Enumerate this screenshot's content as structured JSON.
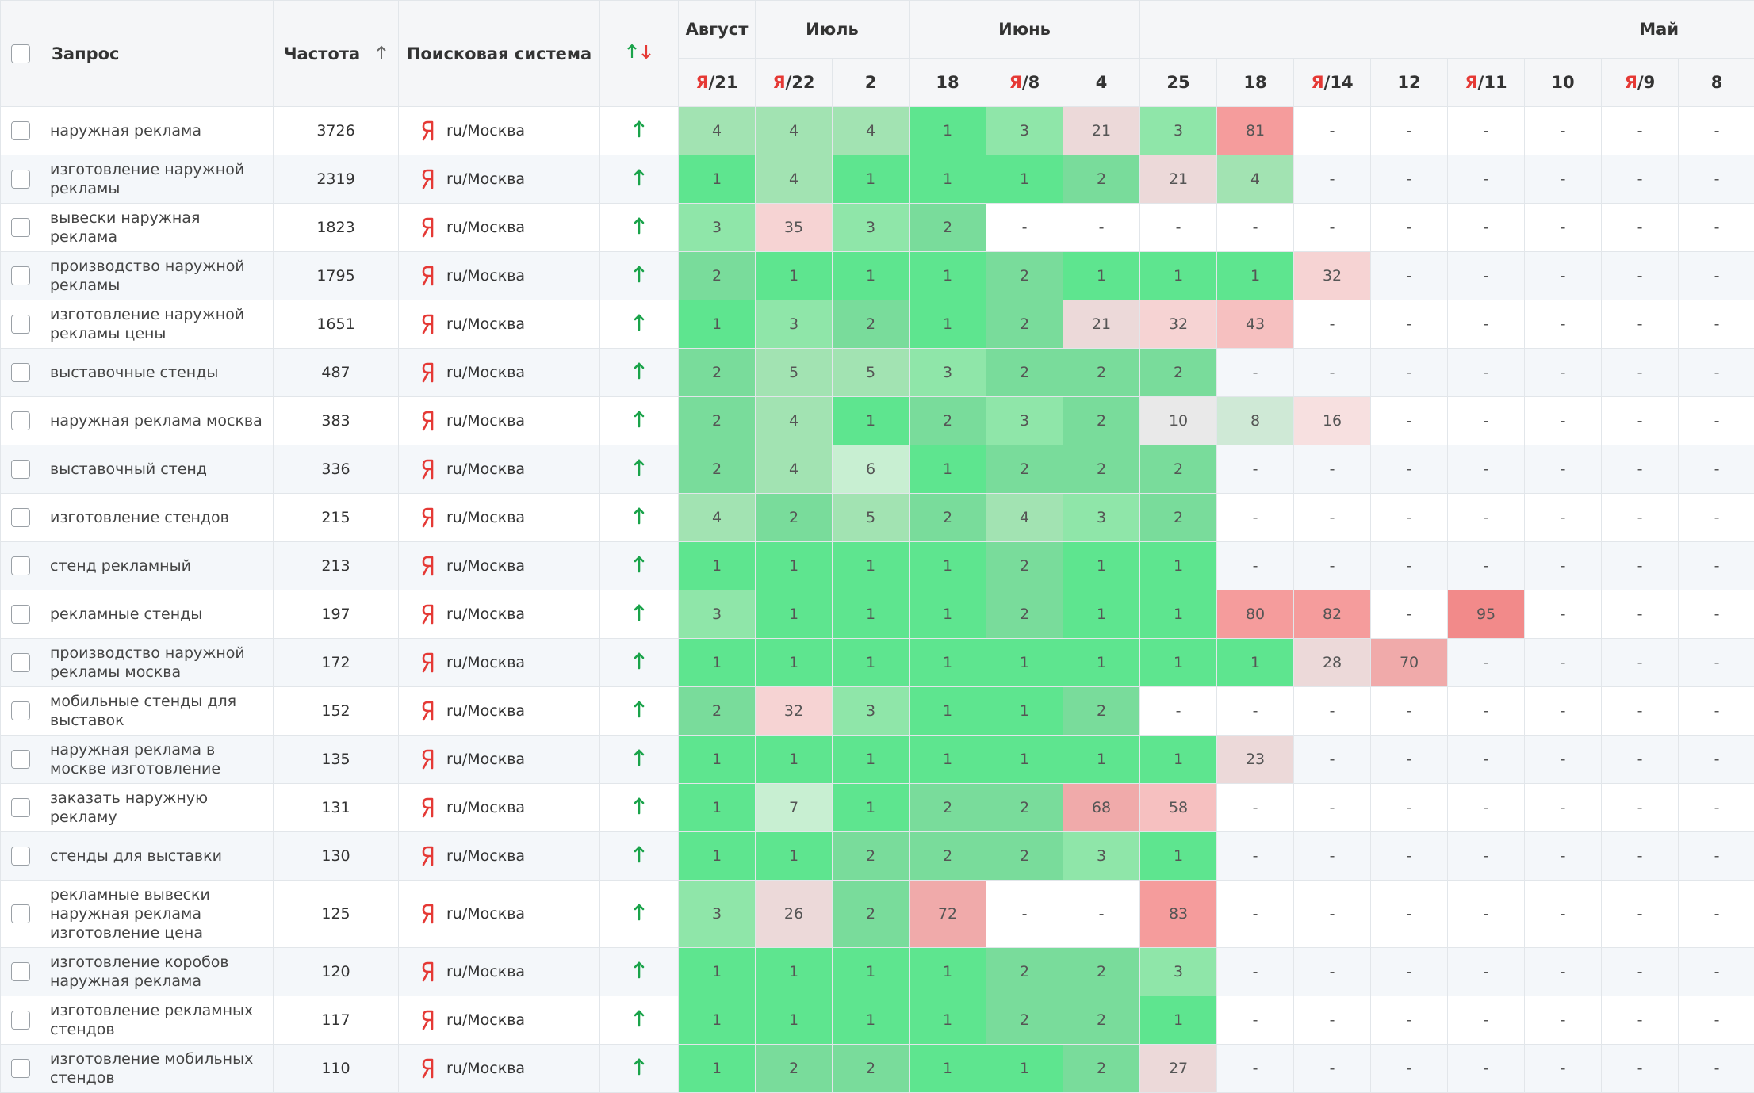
{
  "header": {
    "query": "Запрос",
    "frequency": "Частота",
    "engine": "Поисковая система",
    "months": [
      "Август",
      "Июль",
      "Июнь",
      "Май"
    ],
    "dates": [
      "Я/21",
      "Я/22",
      "2",
      "18",
      "Я/8",
      "4",
      "25",
      "18",
      "Я/14",
      "12",
      "Я/11",
      "10",
      "Я/9",
      "8"
    ]
  },
  "rows": [
    {
      "query": "наружная реклама",
      "frequency": 3726,
      "engine": "ru/Москва",
      "positions": [
        4,
        4,
        4,
        1,
        3,
        21,
        3,
        81,
        "-",
        "-",
        "-",
        "-",
        "-",
        "-"
      ]
    },
    {
      "query": "изготовление наружной рекламы",
      "frequency": 2319,
      "engine": "ru/Москва",
      "positions": [
        1,
        4,
        1,
        1,
        1,
        2,
        21,
        4,
        "-",
        "-",
        "-",
        "-",
        "-",
        "-"
      ]
    },
    {
      "query": "вывески наружная реклама",
      "frequency": 1823,
      "engine": "ru/Москва",
      "positions": [
        3,
        35,
        3,
        2,
        "-",
        "-",
        "-",
        "-",
        "-",
        "-",
        "-",
        "-",
        "-",
        "-"
      ]
    },
    {
      "query": "производство наружной рекламы",
      "frequency": 1795,
      "engine": "ru/Москва",
      "positions": [
        2,
        1,
        1,
        1,
        2,
        1,
        1,
        1,
        32,
        "-",
        "-",
        "-",
        "-",
        "-"
      ]
    },
    {
      "query": "изготовление наружной рекламы цены",
      "frequency": 1651,
      "engine": "ru/Москва",
      "positions": [
        1,
        3,
        2,
        1,
        2,
        21,
        32,
        43,
        "-",
        "-",
        "-",
        "-",
        "-",
        "-"
      ]
    },
    {
      "query": "выставочные стенды",
      "frequency": 487,
      "engine": "ru/Москва",
      "positions": [
        2,
        5,
        5,
        3,
        2,
        2,
        2,
        "-",
        "-",
        "-",
        "-",
        "-",
        "-",
        "-"
      ]
    },
    {
      "query": "наружная реклама москва",
      "frequency": 383,
      "engine": "ru/Москва",
      "positions": [
        2,
        4,
        1,
        2,
        3,
        2,
        10,
        8,
        16,
        "-",
        "-",
        "-",
        "-",
        "-"
      ]
    },
    {
      "query": "выставочный стенд",
      "frequency": 336,
      "engine": "ru/Москва",
      "positions": [
        2,
        4,
        6,
        1,
        2,
        2,
        2,
        "-",
        "-",
        "-",
        "-",
        "-",
        "-",
        "-"
      ]
    },
    {
      "query": "изготовление стендов",
      "frequency": 215,
      "engine": "ru/Москва",
      "positions": [
        4,
        2,
        5,
        2,
        4,
        3,
        2,
        "-",
        "-",
        "-",
        "-",
        "-",
        "-",
        "-"
      ]
    },
    {
      "query": "стенд рекламный",
      "frequency": 213,
      "engine": "ru/Москва",
      "positions": [
        1,
        1,
        1,
        1,
        2,
        1,
        1,
        "-",
        "-",
        "-",
        "-",
        "-",
        "-",
        "-"
      ]
    },
    {
      "query": "рекламные стенды",
      "frequency": 197,
      "engine": "ru/Москва",
      "positions": [
        3,
        1,
        1,
        1,
        2,
        1,
        1,
        80,
        82,
        "-",
        95,
        "-",
        "-",
        "-"
      ]
    },
    {
      "query": "производство наружной рекламы москва",
      "frequency": 172,
      "engine": "ru/Москва",
      "positions": [
        1,
        1,
        1,
        1,
        1,
        1,
        1,
        1,
        28,
        70,
        "-",
        "-",
        "-",
        "-"
      ]
    },
    {
      "query": "мобильные стенды для выставок",
      "frequency": 152,
      "engine": "ru/Москва",
      "positions": [
        2,
        32,
        3,
        1,
        1,
        2,
        "-",
        "-",
        "-",
        "-",
        "-",
        "-",
        "-",
        "-"
      ]
    },
    {
      "query": "наружная реклама в москве изготовление",
      "frequency": 135,
      "engine": "ru/Москва",
      "positions": [
        1,
        1,
        1,
        1,
        1,
        1,
        1,
        23,
        "-",
        "-",
        "-",
        "-",
        "-",
        "-"
      ]
    },
    {
      "query": "заказать наружную рекламу",
      "frequency": 131,
      "engine": "ru/Москва",
      "positions": [
        1,
        7,
        1,
        2,
        2,
        68,
        58,
        "-",
        "-",
        "-",
        "-",
        "-",
        "-",
        "-"
      ]
    },
    {
      "query": "стенды для выставки",
      "frequency": 130,
      "engine": "ru/Москва",
      "positions": [
        1,
        1,
        2,
        2,
        2,
        3,
        1,
        "-",
        "-",
        "-",
        "-",
        "-",
        "-",
        "-"
      ]
    },
    {
      "query": "рекламные вывески наружная реклама изготовление цена",
      "frequency": 125,
      "engine": "ru/Москва",
      "positions": [
        3,
        26,
        2,
        72,
        "-",
        "-",
        83,
        "-",
        "-",
        "-",
        "-",
        "-",
        "-",
        "-"
      ]
    },
    {
      "query": "изготовление коробов наружная реклама",
      "frequency": 120,
      "engine": "ru/Москва",
      "positions": [
        1,
        1,
        1,
        1,
        2,
        2,
        3,
        "-",
        "-",
        "-",
        "-",
        "-",
        "-",
        "-"
      ]
    },
    {
      "query": "изготовление рекламных стендов",
      "frequency": 117,
      "engine": "ru/Москва",
      "positions": [
        1,
        1,
        1,
        1,
        2,
        2,
        1,
        "-",
        "-",
        "-",
        "-",
        "-",
        "-",
        "-"
      ]
    },
    {
      "query": "изготовление мобильных стендов",
      "frequency": 110,
      "engine": "ru/Москва",
      "positions": [
        1,
        2,
        2,
        1,
        1,
        2,
        27,
        "-",
        "-",
        "-",
        "-",
        "-",
        "-",
        "-"
      ]
    }
  ]
}
